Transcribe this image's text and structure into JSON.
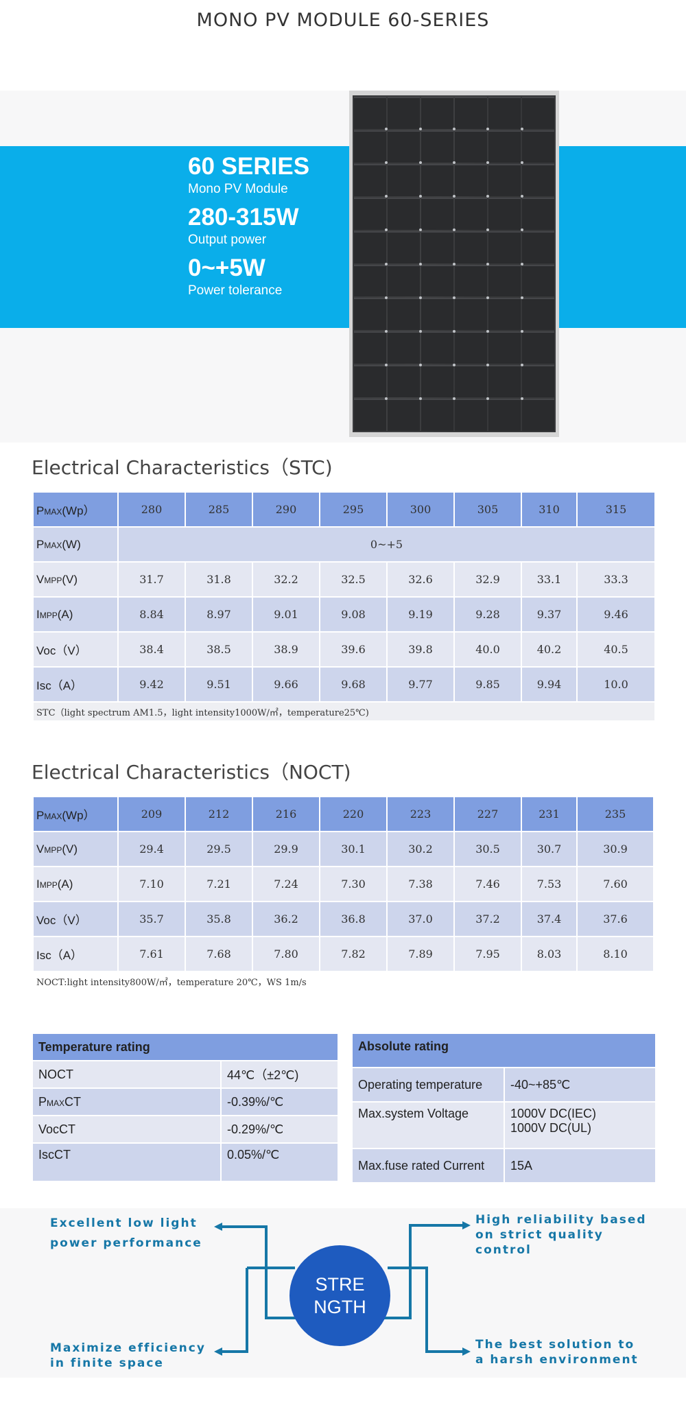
{
  "page_title": "MONO PV MODULE 60-SERIES",
  "hero": {
    "series": "60 SERIES",
    "series_sub": "Mono PV Module",
    "power": "280-315W",
    "power_sub": "Output power",
    "tolerance": "0~+5W",
    "tolerance_sub": "Power tolerance",
    "panel_image": "mono-pv-panel-image"
  },
  "stc": {
    "title": "Electrical Characteristics（STC)",
    "header": {
      "label_main": "P",
      "label_sub": "MAX",
      "label_tail": "(Wp）",
      "values": [
        "280",
        "285",
        "290",
        "295",
        "300",
        "305",
        "310",
        "315"
      ]
    },
    "tolerance_row": {
      "label_main": "P",
      "label_sub": "MAX",
      "label_tail": "(W)",
      "value": "0~+5"
    },
    "rows": [
      {
        "label_main": "V",
        "label_sub": "MPP",
        "label_tail": "(V)",
        "values": [
          "31.7",
          "31.8",
          "32.2",
          "32.5",
          "32.6",
          "32.9",
          "33.1",
          "33.3"
        ]
      },
      {
        "label_main": "I",
        "label_sub": "MPP",
        "label_tail": "(A)",
        "values": [
          "8.84",
          "8.97",
          "9.01",
          "9.08",
          "9.19",
          "9.28",
          "9.37",
          "9.46"
        ]
      },
      {
        "label_main": "Voc（V）",
        "label_sub": "",
        "label_tail": "",
        "values": [
          "38.4",
          "38.5",
          "38.9",
          "39.6",
          "39.8",
          "40.0",
          "40.2",
          "40.5"
        ]
      },
      {
        "label_main": "Isc（A）",
        "label_sub": "",
        "label_tail": "",
        "values": [
          "9.42",
          "9.51",
          "9.66",
          "9.68",
          "9.77",
          "9.85",
          "9.94",
          "10.0"
        ]
      }
    ],
    "note": "STC（light spectrum AM1.5，light intensity1000W/㎡，temperature25℃)"
  },
  "noct": {
    "title": "Electrical Characteristics（NOCT)",
    "header": {
      "label_main": "P",
      "label_sub": "MAX",
      "label_tail": "(Wp）",
      "values": [
        "209",
        "212",
        "216",
        "220",
        "223",
        "227",
        "231",
        "235"
      ]
    },
    "rows": [
      {
        "label_main": "V",
        "label_sub": "MPP",
        "label_tail": "(V)",
        "values": [
          "29.4",
          "29.5",
          "29.9",
          "30.1",
          "30.2",
          "30.5",
          "30.7",
          "30.9"
        ]
      },
      {
        "label_main": "I",
        "label_sub": "MPP",
        "label_tail": "(A)",
        "values": [
          "7.10",
          "7.21",
          "7.24",
          "7.30",
          "7.38",
          "7.46",
          "7.53",
          "7.60"
        ]
      },
      {
        "label_main": "Voc（V）",
        "label_sub": "",
        "label_tail": "",
        "values": [
          "35.7",
          "35.8",
          "36.2",
          "36.8",
          "37.0",
          "37.2",
          "37.4",
          "37.6"
        ]
      },
      {
        "label_main": "Isc（A）",
        "label_sub": "",
        "label_tail": "",
        "values": [
          "7.61",
          "7.68",
          "7.80",
          "7.82",
          "7.89",
          "7.95",
          "8.03",
          "8.10"
        ]
      }
    ],
    "note": "NOCT:light intensity800W/㎡，temperature 20℃，WS 1m/s"
  },
  "temperature_rating": {
    "title": "Temperature rating",
    "rows": [
      {
        "label_main": "NOCT",
        "label_sub": "",
        "label_tail": "",
        "value": "44℃（±2℃)"
      },
      {
        "label_main": "P",
        "label_sub": "MAX",
        "label_tail": "CT",
        "value": "-0.39%/℃"
      },
      {
        "label_main": "VocCT",
        "label_sub": "",
        "label_tail": "",
        "value": "-0.29%/℃"
      },
      {
        "label_main": "IscCT",
        "label_sub": "",
        "label_tail": "",
        "value": "0.05%/℃"
      }
    ]
  },
  "absolute_rating": {
    "title": "Absolute rating",
    "rows": [
      {
        "label": "Operating temperature",
        "value_1": "-40~+85℃",
        "value_2": ""
      },
      {
        "label": "Max.system Voltage",
        "value_1": "1000V DC(IEC)",
        "value_2": "1000V DC(UL)"
      },
      {
        "label": "Max.fuse rated Current",
        "value_1": "15A",
        "value_2": ""
      }
    ]
  },
  "strength": {
    "center_line1": "STRE",
    "center_line2": "NGTH",
    "top_left": [
      "Excellent low light",
      "power performance"
    ],
    "top_right": [
      "High reliability based",
      "on strict quality",
      "control"
    ],
    "bottom_left": [
      "Maximize efficiency",
      "in finite space"
    ],
    "bottom_right": [
      "The best solution to",
      "a harsh environment"
    ],
    "line_color": "#1677a7",
    "circle_color": "#1e5bbf"
  },
  "colors": {
    "hero_band": "#0aaeea",
    "table_header": "#7f9ee0",
    "row_dark": "#cdd5ec",
    "row_light": "#e4e7f2"
  }
}
